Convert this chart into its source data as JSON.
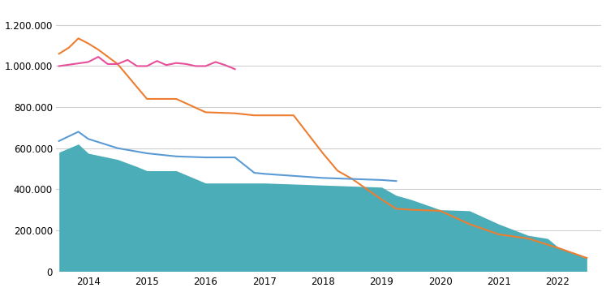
{
  "x_labels": [
    "2014",
    "2015",
    "2016",
    "2017",
    "2018",
    "2019",
    "2020",
    "2021",
    "2022"
  ],
  "x_tick_positions": [
    2014,
    2015,
    2016,
    2017,
    2018,
    2019,
    2020,
    2021,
    2022
  ],
  "xlim": [
    2013.45,
    2022.75
  ],
  "x_teal": [
    2013.5,
    2013.83,
    2014.0,
    2014.5,
    2014.83,
    2015.0,
    2015.5,
    2016.0,
    2016.5,
    2017.0,
    2017.5,
    2018.0,
    2018.5,
    2019.0,
    2019.25,
    2019.5,
    2020.0,
    2020.5,
    2021.0,
    2021.5,
    2021.83,
    2022.0,
    2022.5
  ],
  "y_teal": [
    580000,
    620000,
    575000,
    545000,
    510000,
    490000,
    490000,
    430000,
    430000,
    430000,
    425000,
    420000,
    415000,
    410000,
    370000,
    350000,
    300000,
    295000,
    230000,
    175000,
    160000,
    120000,
    65000
  ],
  "x_blue": [
    2013.5,
    2013.83,
    2014.0,
    2014.5,
    2015.0,
    2015.5,
    2016.0,
    2016.5,
    2016.83,
    2017.0,
    2017.5,
    2018.0,
    2018.5,
    2019.0,
    2019.25
  ],
  "y_blue": [
    635000,
    680000,
    645000,
    600000,
    575000,
    560000,
    555000,
    555000,
    480000,
    475000,
    465000,
    455000,
    450000,
    445000,
    440000
  ],
  "x_orange": [
    2013.5,
    2013.67,
    2013.83,
    2014.0,
    2014.17,
    2014.5,
    2015.0,
    2015.5,
    2016.0,
    2016.5,
    2016.83,
    2017.0,
    2017.5,
    2018.0,
    2018.25,
    2018.5,
    2019.0,
    2019.25,
    2019.5,
    2020.0,
    2020.5,
    2021.0,
    2021.5,
    2021.83,
    2022.0,
    2022.5
  ],
  "y_orange": [
    1060000,
    1090000,
    1135000,
    1110000,
    1080000,
    1010000,
    840000,
    840000,
    775000,
    770000,
    760000,
    760000,
    760000,
    575000,
    490000,
    450000,
    350000,
    305000,
    300000,
    295000,
    230000,
    180000,
    160000,
    130000,
    115000,
    65000
  ],
  "x_pink": [
    2013.5,
    2014.0,
    2014.17,
    2014.33,
    2014.5,
    2014.67,
    2014.83,
    2015.0,
    2015.17,
    2015.33,
    2015.5,
    2015.67,
    2015.83,
    2016.0,
    2016.17,
    2016.33,
    2016.5
  ],
  "y_pink": [
    1000000,
    1020000,
    1045000,
    1010000,
    1010000,
    1030000,
    1000000,
    1000000,
    1025000,
    1005000,
    1015000,
    1010000,
    1000000,
    1000000,
    1020000,
    1005000,
    985000
  ],
  "teal_color": "#4badb8",
  "blue_color": "#5b9bd5",
  "orange_color": "#ed7d31",
  "pink_color": "#e84f9a",
  "background_color": "#ffffff",
  "grid_color": "#d0d0d0",
  "ylim": [
    0,
    1300000
  ],
  "yticks": [
    0,
    200000,
    400000,
    600000,
    800000,
    1000000,
    1200000
  ]
}
